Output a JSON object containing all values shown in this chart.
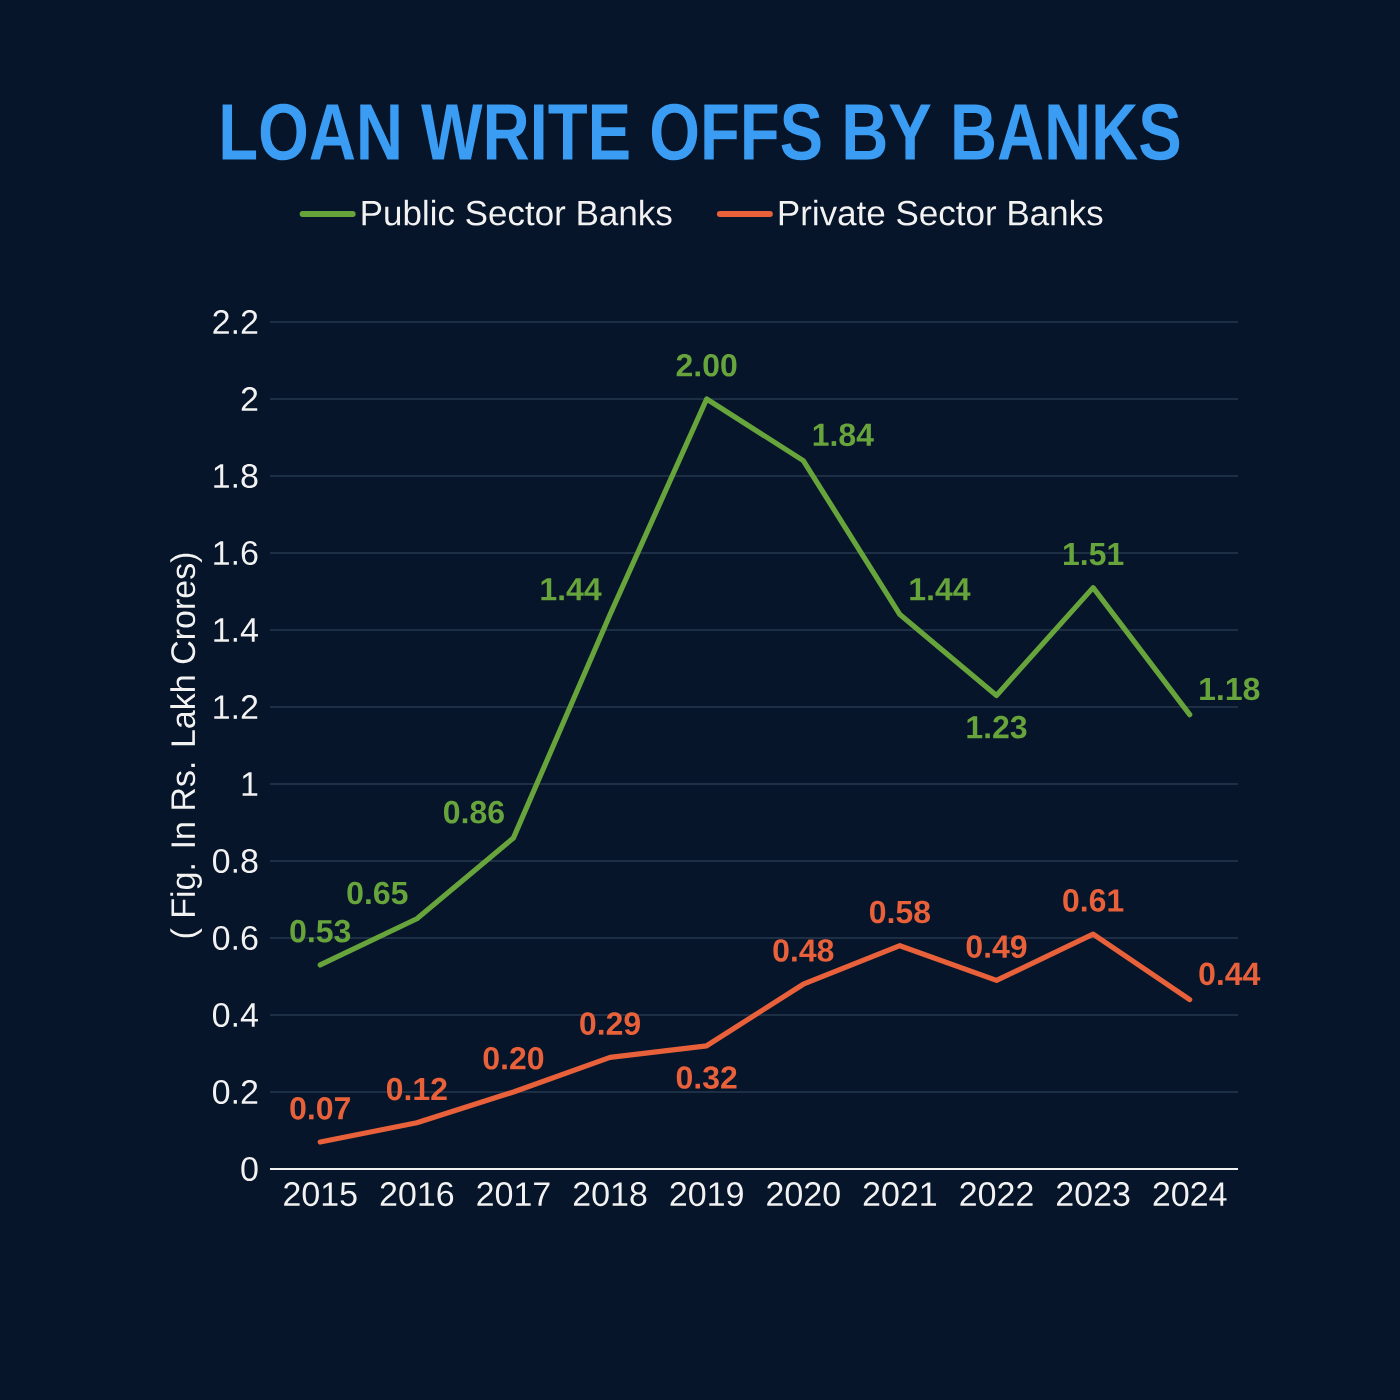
{
  "chart_data": {
    "type": "line",
    "title": "LOAN WRITE OFFS BY BANKS",
    "ylabel": "( Fig. In Rs. Lakh Crores)",
    "categories": [
      "2015",
      "2016",
      "2017",
      "2018",
      "2019",
      "2020",
      "2021",
      "2022",
      "2023",
      "2024"
    ],
    "series": [
      {
        "name": "Public Sector Banks",
        "color": "#68a43c",
        "values": [
          0.53,
          0.65,
          0.86,
          1.44,
          2.0,
          1.84,
          1.44,
          1.23,
          1.51,
          1.18
        ],
        "value_labels": [
          "0.53",
          "0.65",
          "0.86",
          "1.44",
          "2.00",
          "1.84",
          "1.44",
          "1.23",
          "1.51",
          "1.18"
        ]
      },
      {
        "name": "Private Sector Banks",
        "color": "#e8613a",
        "values": [
          0.07,
          0.12,
          0.2,
          0.29,
          0.32,
          0.48,
          0.58,
          0.49,
          0.61,
          0.44
        ],
        "value_labels": [
          "0.07",
          "0.12",
          "0.20",
          "0.29",
          "0.32",
          "0.48",
          "0.58",
          "0.49",
          "0.61",
          "0.44"
        ]
      }
    ],
    "ylim": [
      0,
      2.2
    ],
    "yticks": [
      0,
      0.2,
      0.4,
      0.6,
      0.8,
      1,
      1.2,
      1.4,
      1.6,
      1.8,
      2,
      2.2
    ],
    "grid": "y",
    "legend": "top",
    "marker": "none",
    "line_style": "solid"
  }
}
